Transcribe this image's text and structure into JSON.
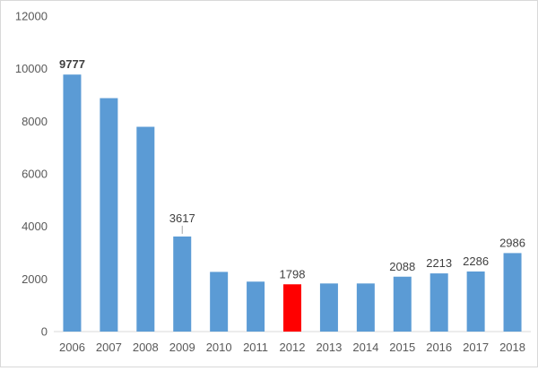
{
  "chart_data": {
    "type": "bar",
    "title": "",
    "xlabel": "",
    "ylabel": "",
    "categories": [
      "2006",
      "2007",
      "2008",
      "2009",
      "2010",
      "2011",
      "2012",
      "2013",
      "2014",
      "2015",
      "2016",
      "2017",
      "2018"
    ],
    "values": [
      9777,
      8880,
      7790,
      3617,
      2270,
      1900,
      1798,
      1830,
      1830,
      2088,
      2213,
      2286,
      2986
    ],
    "data_labels": {
      "0": "9777",
      "3": "3617",
      "6": "1798",
      "9": "2088",
      "10": "2213",
      "11": "2286",
      "12": "2986"
    },
    "bold_labels": [
      "0"
    ],
    "leader_lines": [
      "3"
    ],
    "highlight_index": 6,
    "colors": {
      "bar": "#5b9bd5",
      "highlight": "#ff0000",
      "axis": "#d9d9d9",
      "text": "#595959"
    },
    "ylim": [
      0,
      12000
    ],
    "yticks": [
      0,
      2000,
      4000,
      6000,
      8000,
      10000,
      12000
    ],
    "grid": false,
    "legend": "none"
  }
}
